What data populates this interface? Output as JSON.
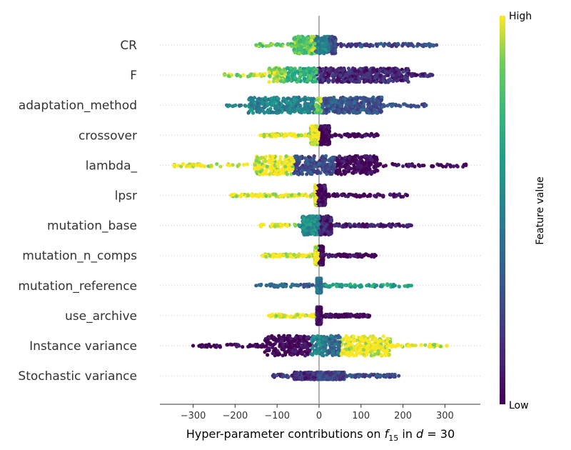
{
  "chart_data": {
    "type": "scatter",
    "subtype": "shap-beeswarm",
    "xlabel_prefix": "Hyper-parameter contributions on ",
    "xlabel_f": "f",
    "xlabel_sub": "15",
    "xlabel_mid": " in ",
    "xlabel_d": "d",
    "xlabel_eq": " = 30",
    "xlim": [
      -380,
      385
    ],
    "xticks": [
      -300,
      -200,
      -100,
      0,
      100,
      200,
      300
    ],
    "xtick_labels": [
      "−300",
      "−200",
      "−100",
      "0",
      "100",
      "200",
      "300"
    ],
    "colorbar": {
      "label": "Feature value",
      "high": "High",
      "low": "Low"
    },
    "colors": {
      "high": "#fde725",
      "mid": "#21908d",
      "low": "#440154",
      "zero_line": "#999999",
      "grid": "#cccccc",
      "text": "#333333"
    },
    "features": [
      {
        "name": "CR",
        "range": [
          -150,
          280
        ],
        "body": [
          -60,
          40,
          12
        ],
        "segments": [
          [
            -150,
            -10,
            0.85
          ],
          [
            -10,
            25,
            0.5
          ],
          [
            25,
            280,
            0.25
          ]
        ]
      },
      {
        "name": "F",
        "range": [
          -225,
          270
        ],
        "body": [
          -120,
          215,
          10
        ],
        "segments": [
          [
            -225,
            -80,
            0.92
          ],
          [
            -80,
            -5,
            0.72
          ],
          [
            -5,
            270,
            0.12
          ]
        ]
      },
      {
        "name": "adaptation_method",
        "range": [
          -220,
          255
        ],
        "body": [
          -170,
          150,
          11
        ],
        "segments": [
          [
            -220,
            -10,
            0.5
          ],
          [
            -10,
            5,
            0.9
          ],
          [
            5,
            255,
            0.3
          ]
        ]
      },
      {
        "name": "crossover",
        "range": [
          -140,
          140
        ],
        "body": [
          -20,
          25,
          13
        ],
        "segments": [
          [
            -140,
            0,
            1.0
          ],
          [
            0,
            140,
            0.0
          ]
        ]
      },
      {
        "name": "lambda_",
        "range": [
          -345,
          350
        ],
        "body": [
          -155,
          140,
          13
        ],
        "segments": [
          [
            -345,
            -60,
            1.0
          ],
          [
            -60,
            40,
            0.25
          ],
          [
            40,
            350,
            0.0
          ]
        ]
      },
      {
        "name": "lpsr",
        "range": [
          -210,
          210
        ],
        "body": [
          -10,
          15,
          14
        ],
        "segments": [
          [
            -210,
            -5,
            1.0
          ],
          [
            -5,
            210,
            0.0
          ]
        ]
      },
      {
        "name": "mutation_base",
        "range": [
          -140,
          220
        ],
        "body": [
          -40,
          30,
          13
        ],
        "segments": [
          [
            -140,
            -50,
            1.0
          ],
          [
            -50,
            0,
            0.55
          ],
          [
            0,
            220,
            0.1
          ]
        ]
      },
      {
        "name": "mutation_n_comps",
        "range": [
          -135,
          135
        ],
        "body": [
          -10,
          10,
          13
        ],
        "segments": [
          [
            -135,
            0,
            1.0
          ],
          [
            0,
            135,
            0.0
          ]
        ]
      },
      {
        "name": "mutation_reference",
        "range": [
          -150,
          220
        ],
        "body": [
          -5,
          5,
          10
        ],
        "segments": [
          [
            -150,
            -10,
            0.35
          ],
          [
            -10,
            15,
            0.45
          ],
          [
            15,
            220,
            0.65
          ]
        ]
      },
      {
        "name": "use_archive",
        "range": [
          -120,
          120
        ],
        "body": [
          -5,
          5,
          12
        ],
        "segments": [
          [
            -120,
            -5,
            1.0
          ],
          [
            -5,
            120,
            0.0
          ]
        ]
      },
      {
        "name": "Instance variance",
        "range": [
          -300,
          305
        ],
        "body": [
          -130,
          170,
          14
        ],
        "segments": [
          [
            -300,
            -20,
            0.0
          ],
          [
            20,
            50,
            0.4
          ],
          [
            50,
            305,
            1.0
          ]
        ]
      },
      {
        "name": "Stochastic variance",
        "range": [
          -110,
          190
        ],
        "body": [
          -60,
          60,
          5
        ],
        "segments": [
          [
            -110,
            -5,
            0.15
          ],
          [
            -5,
            10,
            0.3
          ],
          [
            10,
            190,
            0.25
          ]
        ]
      }
    ]
  }
}
